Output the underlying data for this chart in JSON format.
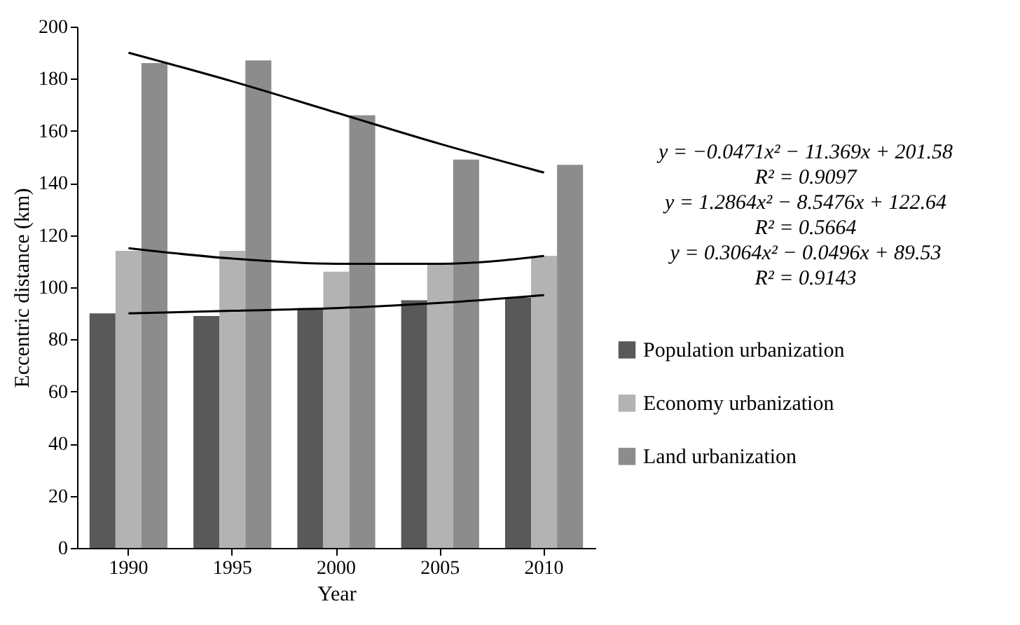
{
  "chart_data": {
    "type": "bar",
    "xlabel": "Year",
    "ylabel": "Eccentric distance (km)",
    "categories": [
      "1990",
      "1995",
      "2000",
      "2005",
      "2010"
    ],
    "series": [
      {
        "name": "Population urbanization",
        "color": "#595959",
        "values": [
          90,
          89,
          92,
          95,
          96
        ]
      },
      {
        "name": "Economy urbanization",
        "color": "#b3b3b3",
        "values": [
          114,
          114,
          106,
          109,
          112
        ]
      },
      {
        "name": "Land urbanization",
        "color": "#8c8c8c",
        "values": [
          186,
          187,
          166,
          149,
          147
        ]
      },
      {
        "type": "line",
        "color": "#000000",
        "values": [
          190,
          179,
          167,
          155,
          144
        ]
      },
      {
        "type": "line",
        "color": "#000000",
        "values": [
          115,
          111,
          109,
          109,
          112
        ]
      },
      {
        "type": "line",
        "color": "#000000",
        "values": [
          90,
          91,
          92,
          94,
          97
        ]
      }
    ],
    "ylim": [
      0,
      200
    ],
    "yticks": [
      0,
      20,
      40,
      60,
      80,
      100,
      120,
      140,
      160,
      180,
      200
    ],
    "grid": false,
    "legend": "right",
    "annotations": [
      "y = −0.0471x² − 11.369x + 201.58",
      "R² = 0.9097",
      "y = 1.2864x² − 8.5476x + 122.64",
      "R² = 0.5664",
      "y = 0.3064x² − 0.0496x + 89.53",
      "R² = 0.9143"
    ]
  }
}
